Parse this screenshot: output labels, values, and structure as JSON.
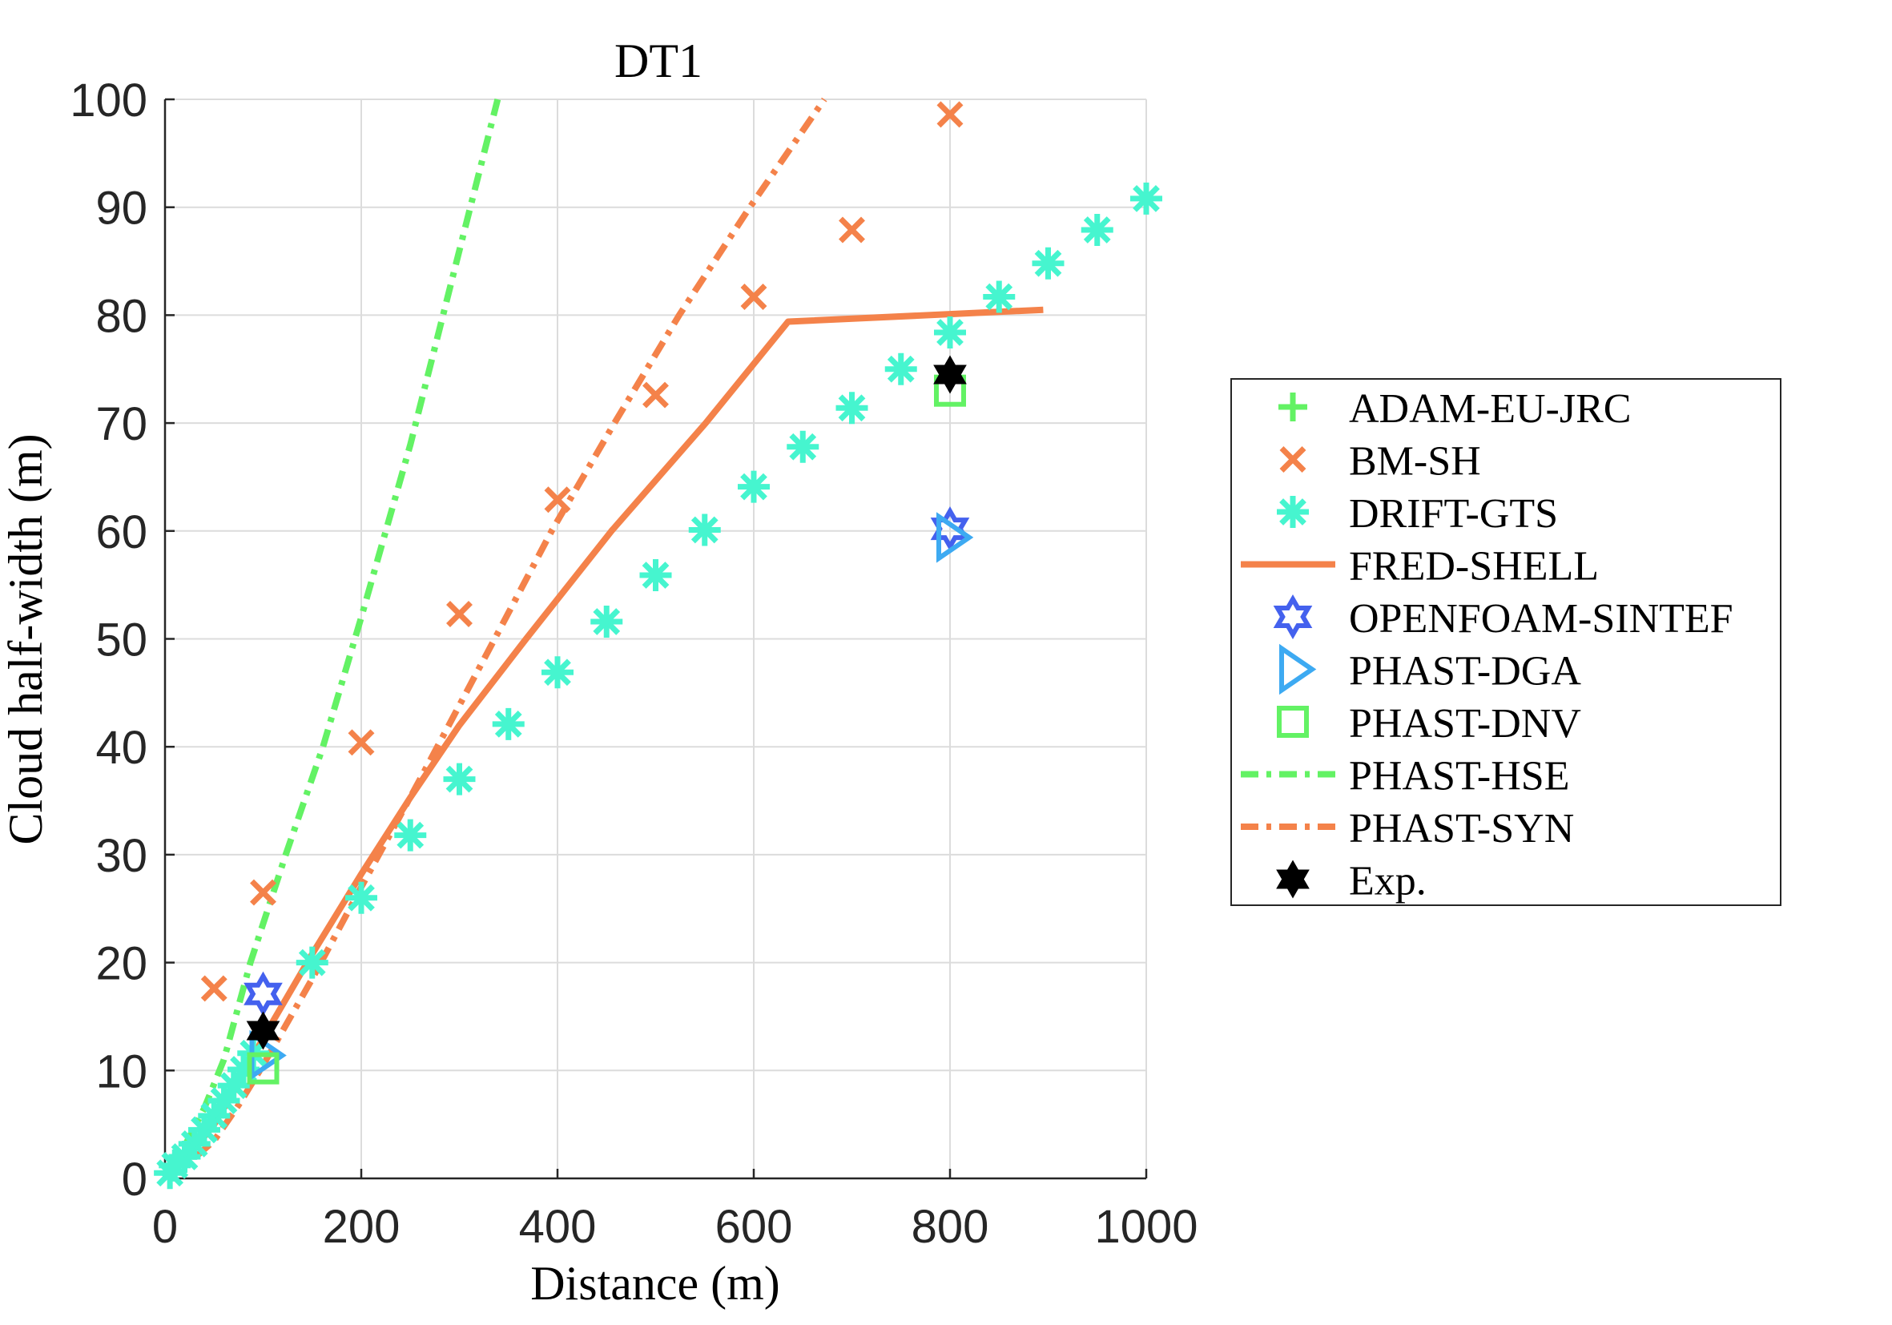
{
  "chart_data": {
    "type": "scatter",
    "title": "DT1",
    "xlabel": "Distance (m)",
    "ylabel": "Cloud half-width (m)",
    "xlim": [
      0,
      1000
    ],
    "ylim": [
      0,
      100
    ],
    "xticks": [
      0,
      200,
      400,
      600,
      800,
      1000
    ],
    "yticks": [
      0,
      10,
      20,
      30,
      40,
      50,
      60,
      70,
      80,
      90,
      100
    ],
    "xtick_labels": [
      "0",
      "200",
      "400",
      "600",
      "800",
      "1000"
    ],
    "ytick_labels": [
      "0",
      "10",
      "20",
      "30",
      "40",
      "50",
      "60",
      "70",
      "80",
      "90",
      "100"
    ],
    "grid": true,
    "legend_position": "outside-right",
    "series": [
      {
        "name": "ADAM-EU-JRC",
        "style": "marker",
        "marker": "plus",
        "color": "#63F264",
        "x": [],
        "y": []
      },
      {
        "name": "BM-SH",
        "style": "marker",
        "marker": "x",
        "color": "#F4824A",
        "x": [
          50,
          100,
          200,
          300,
          400,
          500,
          600,
          700,
          800
        ],
        "y": [
          17.6,
          26.5,
          40.4,
          52.3,
          62.9,
          72.6,
          81.7,
          87.9,
          98.6
        ]
      },
      {
        "name": "DRIFT-GTS",
        "style": "marker",
        "marker": "asterisk",
        "color": "#46F5CF",
        "x": [
          5,
          10,
          20,
          30,
          40,
          50,
          60,
          70,
          80,
          90,
          150,
          200,
          250,
          300,
          350,
          400,
          450,
          500,
          550,
          600,
          650,
          700,
          750,
          800,
          850,
          900,
          950,
          1000
        ],
        "y": [
          0.5,
          1.2,
          2.0,
          3.2,
          4.5,
          5.8,
          7.2,
          8.6,
          10.1,
          11.6,
          20.0,
          26.0,
          31.8,
          37.0,
          42.1,
          46.9,
          51.6,
          55.9,
          60.1,
          64.1,
          67.8,
          71.4,
          75.0,
          78.4,
          81.7,
          84.8,
          87.9,
          90.8
        ]
      },
      {
        "name": "FRED-SHELL",
        "style": "solid",
        "marker": "none",
        "color": "#F4824A",
        "x": [
          0,
          25,
          50,
          75,
          100,
          150,
          200,
          250,
          300,
          368,
          455,
          551,
          635,
          895
        ],
        "y": [
          0,
          2.2,
          5.0,
          8.8,
          13.0,
          20.8,
          28.2,
          35.3,
          42.0,
          50.0,
          60.0,
          70.0,
          79.4,
          80.5
        ]
      },
      {
        "name": "OPENFOAM-SINTEF",
        "style": "marker",
        "marker": "hexagram",
        "color": "#4461EE",
        "x": [
          100,
          800
        ],
        "y": [
          17.1,
          60.2
        ]
      },
      {
        "name": "PHAST-DGA",
        "style": "marker",
        "marker": "triangle-right",
        "color": "#3DAAF2",
        "x": [
          100,
          800
        ],
        "y": [
          11.4,
          59.4
        ]
      },
      {
        "name": "PHAST-DNV",
        "style": "marker",
        "marker": "square",
        "color": "#63F264",
        "x": [
          100,
          800
        ],
        "y": [
          10.2,
          73.0
        ]
      },
      {
        "name": "PHAST-HSE",
        "style": "dashdot",
        "marker": "none",
        "color": "#63F264",
        "x": [
          0,
          20,
          40,
          60,
          87,
          123,
          161,
          200,
          250,
          300,
          339
        ],
        "y": [
          0,
          3.0,
          6.5,
          11.0,
          20.0,
          30.0,
          40.0,
          52.0,
          68.0,
          86.0,
          100.0
        ]
      },
      {
        "name": "PHAST-SYN",
        "style": "dashdot",
        "marker": "none",
        "color": "#F4824A",
        "x": [
          0,
          25,
          50,
          75,
          100,
          150,
          200,
          260,
          336,
          394,
          458,
          524,
          596,
          672
        ],
        "y": [
          0,
          1.5,
          3.5,
          6.8,
          10.5,
          18.5,
          27.0,
          37.0,
          50.0,
          60.0,
          70.0,
          80.0,
          90.0,
          100.0
        ]
      },
      {
        "name": "Exp.",
        "style": "marker",
        "marker": "hexagram-filled",
        "color": "#000000",
        "x": [
          100,
          800
        ],
        "y": [
          13.7,
          74.5
        ]
      }
    ]
  }
}
